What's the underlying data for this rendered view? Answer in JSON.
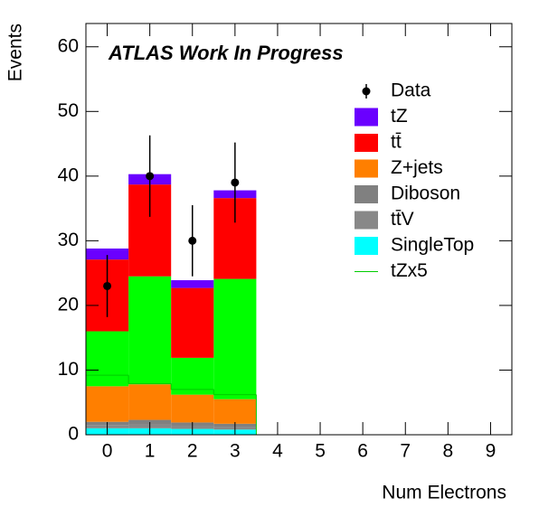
{
  "chart_data": {
    "type": "stacked_histogram",
    "title": "ATLAS Work In Progress",
    "x_label": "Num Electrons",
    "y_label": "Events",
    "bins": [
      -0.5,
      0.5,
      1.5,
      2.5,
      3.5,
      4.5,
      5.5,
      6.5,
      7.5,
      8.5,
      9.5
    ],
    "xlim": [
      -0.5,
      9.5
    ],
    "xticks": [
      0,
      1,
      2,
      3,
      4,
      5,
      6,
      7,
      8,
      9
    ],
    "ylim": [
      0,
      63.6
    ],
    "yticks": [
      0,
      10,
      20,
      30,
      40,
      50,
      60
    ],
    "data": {
      "name": "Data",
      "color": "#000000",
      "values": [
        23,
        40,
        30,
        39,
        0,
        0,
        0,
        0,
        0,
        0
      ],
      "errors": [
        4.8,
        6.3,
        5.5,
        6.2,
        0,
        0,
        0,
        0,
        0,
        0
      ]
    },
    "series": [
      {
        "name": "tZ",
        "color": "#6a00ff",
        "values": [
          1.7,
          1.6,
          1.2,
          1.2,
          0,
          0,
          0,
          0,
          0,
          0
        ]
      },
      {
        "name": "tt̄",
        "color": "#ff0000",
        "values": [
          11.1,
          14.2,
          10.8,
          12.5,
          0,
          0,
          0,
          0,
          0,
          0
        ]
      },
      {
        "name": null,
        "color": "#00ff00",
        "values": [
          8.5,
          16.7,
          5.7,
          18.6,
          0,
          0,
          0,
          0,
          0,
          0
        ]
      },
      {
        "name": "Z+jets",
        "color": "#ff7f00",
        "values": [
          5.5,
          5.5,
          4.3,
          3.8,
          0,
          0,
          0,
          0,
          0,
          0
        ]
      },
      {
        "name": "Diboson",
        "color": "#808080",
        "values": [
          0.5,
          0.7,
          0.5,
          0.5,
          0,
          0,
          0,
          0,
          0,
          0
        ]
      },
      {
        "name": "tt̄V",
        "color": "#888888",
        "values": [
          0.5,
          0.6,
          0.5,
          0.4,
          0,
          0,
          0,
          0,
          0,
          0
        ]
      },
      {
        "name": "SingleTop",
        "color": "#00ffff",
        "values": [
          1,
          1,
          0.9,
          0.8,
          0,
          0,
          0,
          0,
          0,
          0
        ]
      }
    ],
    "overlay": {
      "name": "tZx5",
      "color": "#00cc00",
      "values": [
        9.2,
        7.9,
        7.0,
        6.2,
        0,
        0,
        0,
        0,
        0,
        0
      ]
    }
  }
}
